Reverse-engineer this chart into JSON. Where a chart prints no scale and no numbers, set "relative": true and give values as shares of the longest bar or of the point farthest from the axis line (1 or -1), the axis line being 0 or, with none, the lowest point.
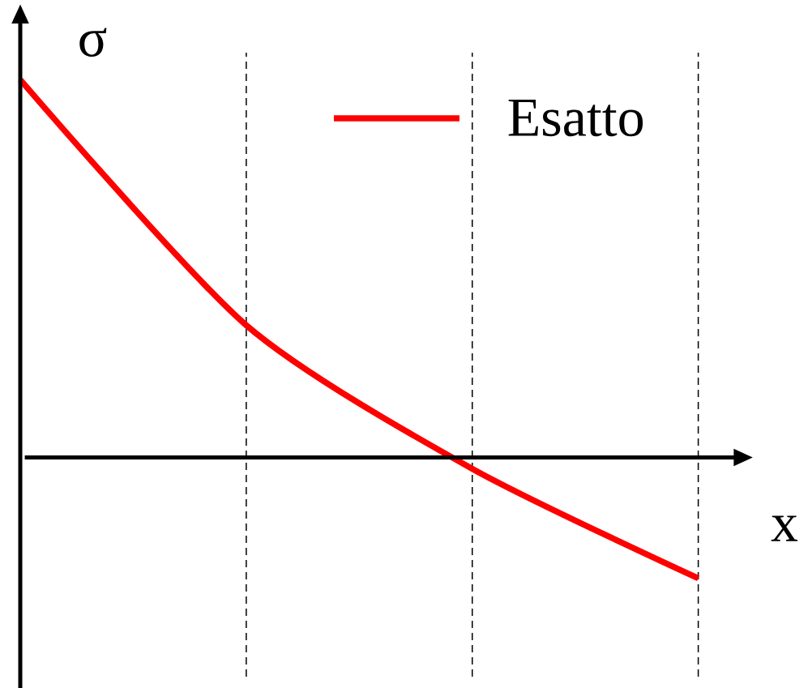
{
  "chart_data": {
    "type": "line",
    "xlabel": "x",
    "ylabel": "σ",
    "relative": true,
    "legend": "top right",
    "grid": "x",
    "categories": [
      null,
      null,
      null,
      null
    ],
    "series": [
      {
        "name": "Esatto",
        "color": "#ff0000",
        "values": [
          1,
          0.35,
          -0.03,
          -0.32
        ]
      }
    ]
  }
}
